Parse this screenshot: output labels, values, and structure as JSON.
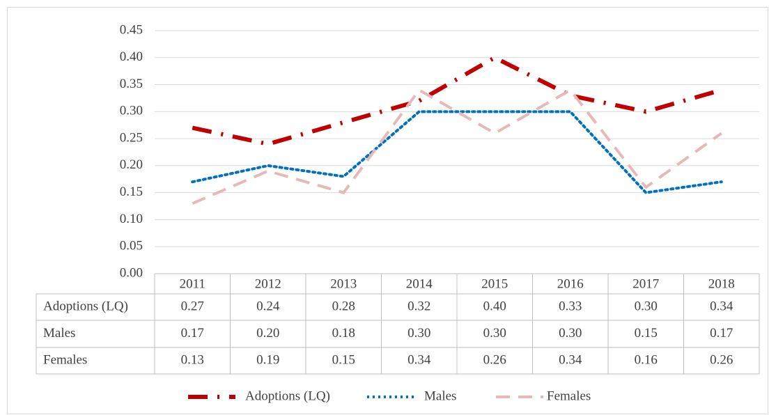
{
  "chart_data": {
    "type": "line",
    "categories": [
      "2011",
      "2012",
      "2013",
      "2014",
      "2015",
      "2016",
      "2017",
      "2018"
    ],
    "ylim": [
      0,
      0.45
    ],
    "yticks": [
      {
        "value": 0,
        "label": "0.00"
      },
      0.05,
      {
        "value": 0.1,
        "label": "0.10"
      },
      0.15,
      {
        "value": 0.2,
        "label": "0.20"
      },
      0.25,
      {
        "value": 0.3,
        "label": "0.30"
      },
      0.35,
      {
        "value": 0.4,
        "label": "0.40"
      },
      0.45
    ],
    "grid": true,
    "series": [
      {
        "name": "Adoptions (LQ)",
        "color": "#c00000",
        "style": "dashdot",
        "values": [
          0.27,
          0.24,
          0.28,
          0.32,
          0.4,
          0.33,
          0.3,
          0.34
        ],
        "value_labels": [
          "0.27",
          "0.24",
          "0.28",
          "0.32",
          "0.40",
          "0.33",
          "0.30",
          "0.34"
        ]
      },
      {
        "name": "Males",
        "color": "#0070c0",
        "style": "dotted",
        "values": [
          0.17,
          0.2,
          0.18,
          0.3,
          0.3,
          0.3,
          0.15,
          0.17
        ],
        "value_labels": [
          "0.17",
          "0.20",
          "0.18",
          "0.30",
          "0.30",
          "0.30",
          "0.15",
          "0.17"
        ]
      },
      {
        "name": "Females",
        "color": "#e6b9b8",
        "style": "dashed",
        "values": [
          0.13,
          0.19,
          0.15,
          0.34,
          0.26,
          0.34,
          0.16,
          0.26
        ],
        "value_labels": [
          "0.13",
          "0.19",
          "0.15",
          "0.34",
          "0.26",
          "0.34",
          "0.16",
          "0.26"
        ]
      }
    ]
  }
}
